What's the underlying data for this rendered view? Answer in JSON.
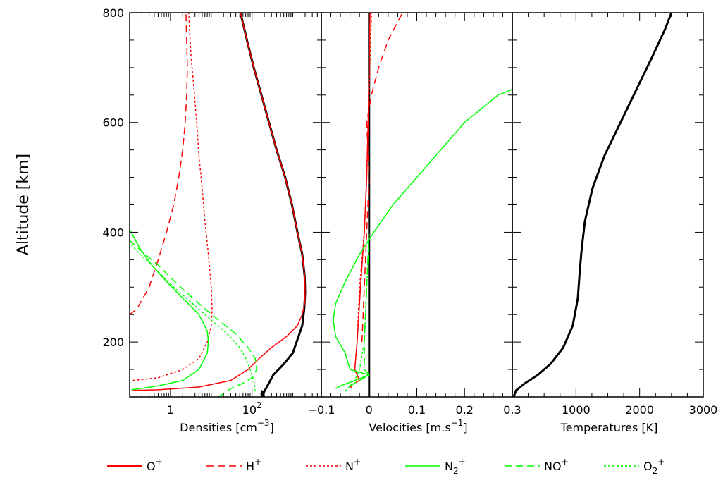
{
  "chart_data": {
    "type": "line",
    "ylabel": "Altitude [km]",
    "ylim": [
      100,
      800
    ],
    "y_ticks": [
      200,
      400,
      600,
      800
    ],
    "colors": {
      "ions_O_H_N": "#ff0000",
      "ions_N2_NO_O2": "#00ff00",
      "total_or_temperature": "#000000"
    },
    "legend": [
      {
        "base": "O",
        "sub": "",
        "sup": "+",
        "color": "#ff0000",
        "dash": "solid",
        "width": 3
      },
      {
        "base": "H",
        "sub": "",
        "sup": "+",
        "color": "#ff0000",
        "dash": "long-dash",
        "width": 1.5
      },
      {
        "base": "N",
        "sub": "",
        "sup": "+",
        "color": "#ff0000",
        "dash": "dotted",
        "width": 1.5
      },
      {
        "base": "N",
        "sub": "2",
        "sup": "+",
        "color": "#00ff00",
        "dash": "solid",
        "width": 1.5
      },
      {
        "base": "NO",
        "sub": "",
        "sup": "+",
        "color": "#00ff00",
        "dash": "long-dash",
        "width": 1.5
      },
      {
        "base": "O",
        "sub": "2",
        "sup": "+",
        "color": "#00ff00",
        "dash": "dotted",
        "width": 1.5
      }
    ],
    "panels": [
      {
        "id": "densities",
        "xlabel_parts": [
          "Densities [cm",
          "−3",
          "]"
        ],
        "xscale": "log",
        "xlim": [
          0.1,
          5000
        ],
        "x_ticks": [
          {
            "x": 1,
            "base": "1",
            "sup": ""
          },
          {
            "x": 100,
            "base": "10",
            "sup": "2"
          }
        ],
        "series": [
          {
            "name": "total",
            "color": "#000000",
            "dash": "solid",
            "width": 3,
            "points": [
              [
                180,
                112
              ],
              [
                170,
                106
              ],
              [
                175,
                100
              ],
              [
                200,
                110
              ],
              [
                250,
                123
              ],
              [
                330,
                140
              ],
              [
                600,
                160
              ],
              [
                1000,
                180
              ],
              [
                1700,
                230
              ],
              [
                1900,
                260
              ],
              [
                2000,
                290
              ],
              [
                1950,
                320
              ],
              [
                1700,
                360
              ],
              [
                1300,
                400
              ],
              [
                950,
                450
              ],
              [
                650,
                500
              ],
              [
                400,
                550
              ],
              [
                260,
                600
              ],
              [
                170,
                650
              ],
              [
                110,
                700
              ],
              [
                75,
                750
              ],
              [
                52,
                800
              ]
            ]
          },
          {
            "name": "O+",
            "color": "#ff0000",
            "dash": "solid",
            "width": 1.5,
            "points": [
              [
                0.12,
                112
              ],
              [
                0.5,
                113
              ],
              [
                5,
                118
              ],
              [
                30,
                130
              ],
              [
                80,
                150
              ],
              [
                150,
                170
              ],
              [
                300,
                190
              ],
              [
                700,
                210
              ],
              [
                1300,
                230
              ],
              [
                1700,
                250
              ],
              [
                1950,
                270
              ],
              [
                2000,
                290
              ],
              [
                1950,
                320
              ],
              [
                1700,
                360
              ],
              [
                1300,
                400
              ],
              [
                950,
                450
              ],
              [
                650,
                500
              ],
              [
                400,
                550
              ],
              [
                260,
                600
              ],
              [
                170,
                650
              ],
              [
                110,
                700
              ],
              [
                75,
                750
              ],
              [
                52,
                800
              ]
            ]
          },
          {
            "name": "H+",
            "color": "#ff0000",
            "dash": "long-dash",
            "width": 1.5,
            "points": [
              [
                0.1,
                250
              ],
              [
                0.15,
                260
              ],
              [
                0.3,
                300
              ],
              [
                0.5,
                350
              ],
              [
                0.8,
                400
              ],
              [
                1.2,
                450
              ],
              [
                1.6,
                500
              ],
              [
                2.0,
                550
              ],
              [
                2.3,
                600
              ],
              [
                2.5,
                650
              ],
              [
                2.6,
                700
              ],
              [
                2.5,
                750
              ],
              [
                2.4,
                800
              ]
            ]
          },
          {
            "name": "N+",
            "color": "#ff0000",
            "dash": "dotted",
            "width": 1.5,
            "points": [
              [
                0.12,
                130
              ],
              [
                0.5,
                135
              ],
              [
                2,
                150
              ],
              [
                5,
                170
              ],
              [
                8,
                200
              ],
              [
                10,
                230
              ],
              [
                10.5,
                260
              ],
              [
                10,
                300
              ],
              [
                8.5,
                360
              ],
              [
                7,
                420
              ],
              [
                6,
                480
              ],
              [
                5,
                540
              ],
              [
                4.4,
                600
              ],
              [
                3.8,
                660
              ],
              [
                3.2,
                720
              ],
              [
                2.8,
                800
              ]
            ]
          },
          {
            "name": "N2+",
            "color": "#00ff00",
            "dash": "solid",
            "width": 1.5,
            "points": [
              [
                0.11,
                113
              ],
              [
                0.5,
                120
              ],
              [
                2,
                130
              ],
              [
                5,
                150
              ],
              [
                8,
                180
              ],
              [
                8.5,
                200
              ],
              [
                8,
                220
              ],
              [
                5,
                250
              ],
              [
                2,
                280
              ],
              [
                0.8,
                310
              ],
              [
                0.35,
                340
              ],
              [
                0.18,
                370
              ],
              [
                0.1,
                405
              ]
            ]
          },
          {
            "name": "NO+",
            "color": "#00ff00",
            "dash": "long-dash",
            "width": 1.5,
            "points": [
              [
                15,
                100
              ],
              [
                30,
                115
              ],
              [
                60,
                125
              ],
              [
                100,
                135
              ],
              [
                130,
                150
              ],
              [
                120,
                170
              ],
              [
                80,
                190
              ],
              [
                40,
                215
              ],
              [
                15,
                240
              ],
              [
                5,
                270
              ],
              [
                1.5,
                305
              ],
              [
                0.5,
                340
              ],
              [
                0.2,
                365
              ],
              [
                0.1,
                385
              ]
            ]
          },
          {
            "name": "O2+",
            "color": "#00ff00",
            "dash": "dotted",
            "width": 1.5,
            "points": [
              [
                120,
                110
              ],
              [
                110,
                130
              ],
              [
                90,
                150
              ],
              [
                70,
                170
              ],
              [
                50,
                190
              ],
              [
                25,
                215
              ],
              [
                10,
                240
              ],
              [
                3.5,
                270
              ],
              [
                1.2,
                300
              ],
              [
                0.4,
                335
              ],
              [
                0.18,
                360
              ],
              [
                0.1,
                380
              ]
            ]
          }
        ]
      },
      {
        "id": "velocities",
        "xlabel_parts": [
          "Velocities [m.s",
          "−1",
          "]"
        ],
        "xscale": "linear",
        "xlim": [
          -0.1,
          0.3
        ],
        "x_ticks": [
          {
            "x": -0.1,
            "base": "−0.1",
            "sup": ""
          },
          {
            "x": 0,
            "base": "0",
            "sup": ""
          },
          {
            "x": 0.1,
            "base": "0.1",
            "sup": ""
          },
          {
            "x": 0.2,
            "base": "0.2",
            "sup": ""
          },
          {
            "x": 0.3,
            "base": "0.3",
            "sup": ""
          }
        ],
        "series": [
          {
            "name": "total",
            "color": "#000000",
            "dash": "solid",
            "width": 3,
            "points": [
              [
                0,
                100
              ],
              [
                0,
                800
              ]
            ]
          },
          {
            "name": "O+",
            "color": "#ff0000",
            "dash": "solid",
            "width": 1.5,
            "points": [
              [
                -0.035,
                115
              ],
              [
                -0.04,
                120
              ],
              [
                -0.02,
                130
              ],
              [
                -0.03,
                150
              ],
              [
                -0.025,
                200
              ],
              [
                -0.018,
                300
              ],
              [
                -0.01,
                400
              ],
              [
                -0.005,
                500
              ],
              [
                -0.002,
                600
              ],
              [
                0,
                700
              ],
              [
                0.002,
                800
              ]
            ]
          },
          {
            "name": "H+",
            "color": "#ff0000",
            "dash": "long-dash",
            "width": 1.5,
            "points": [
              [
                -0.015,
                200
              ],
              [
                -0.01,
                300
              ],
              [
                -0.005,
                400
              ],
              [
                0,
                500
              ],
              [
                -0.005,
                600
              ],
              [
                0.005,
                650
              ],
              [
                0.02,
                700
              ],
              [
                0.04,
                750
              ],
              [
                0.07,
                800
              ]
            ]
          },
          {
            "name": "N+",
            "color": "#ff0000",
            "dash": "dotted",
            "width": 1.5,
            "points": [
              [
                -0.02,
                130
              ],
              [
                -0.03,
                150
              ],
              [
                -0.025,
                200
              ],
              [
                -0.02,
                300
              ],
              [
                -0.01,
                400
              ],
              [
                -0.005,
                500
              ],
              [
                0,
                650
              ],
              [
                0.005,
                800
              ]
            ]
          },
          {
            "name": "N2+",
            "color": "#00ff00",
            "dash": "solid",
            "width": 1.5,
            "points": [
              [
                -0.07,
                115
              ],
              [
                -0.06,
                120
              ],
              [
                0,
                140
              ],
              [
                -0.04,
                150
              ],
              [
                -0.05,
                180
              ],
              [
                -0.07,
                210
              ],
              [
                -0.075,
                240
              ],
              [
                -0.07,
                270
              ],
              [
                -0.05,
                310
              ],
              [
                -0.02,
                360
              ],
              [
                0.01,
                400
              ],
              [
                0.05,
                450
              ],
              [
                0.1,
                500
              ],
              [
                0.15,
                550
              ],
              [
                0.2,
                600
              ],
              [
                0.27,
                650
              ],
              [
                0.3,
                660
              ]
            ]
          },
          {
            "name": "NO+",
            "color": "#00ff00",
            "dash": "long-dash",
            "width": 1.5,
            "points": [
              [
                -0.04,
                120
              ],
              [
                -0.02,
                130
              ],
              [
                0,
                140
              ],
              [
                -0.01,
                150
              ],
              [
                -0.01,
                200
              ],
              [
                -0.005,
                300
              ],
              [
                0,
                400
              ]
            ]
          },
          {
            "name": "O2+",
            "color": "#00ff00",
            "dash": "dotted",
            "width": 1.5,
            "points": [
              [
                -0.05,
                110
              ],
              [
                -0.03,
                130
              ],
              [
                -0.02,
                150
              ],
              [
                -0.01,
                200
              ],
              [
                -0.005,
                300
              ],
              [
                0,
                400
              ]
            ]
          }
        ]
      },
      {
        "id": "temperatures",
        "xlabel_parts": [
          "Temperatures [K]",
          "",
          ""
        ],
        "xscale": "linear",
        "xlim": [
          0,
          3000
        ],
        "x_ticks": [
          {
            "x": 1000,
            "base": "1000",
            "sup": ""
          },
          {
            "x": 2000,
            "base": "2000",
            "sup": ""
          },
          {
            "x": 3000,
            "base": "3000",
            "sup": ""
          }
        ],
        "series": [
          {
            "name": "temperature",
            "color": "#000000",
            "dash": "solid",
            "width": 3,
            "points": [
              [
                20,
                100
              ],
              [
                60,
                112
              ],
              [
                200,
                125
              ],
              [
                400,
                140
              ],
              [
                600,
                160
              ],
              [
                800,
                190
              ],
              [
                950,
                230
              ],
              [
                1030,
                280
              ],
              [
                1060,
                330
              ],
              [
                1090,
                370
              ],
              [
                1140,
                420
              ],
              [
                1260,
                480
              ],
              [
                1450,
                540
              ],
              [
                1700,
                600
              ],
              [
                1950,
                660
              ],
              [
                2200,
                720
              ],
              [
                2400,
                770
              ],
              [
                2500,
                800
              ]
            ]
          }
        ]
      }
    ]
  }
}
